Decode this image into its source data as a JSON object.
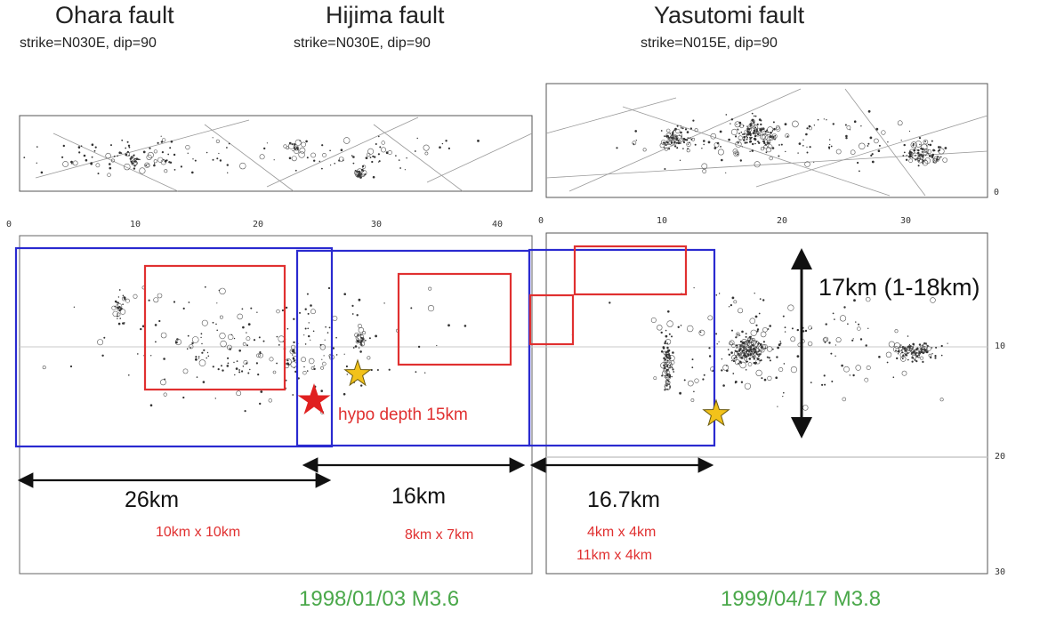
{
  "faults": [
    {
      "name": "Ohara fault",
      "params": "strike=N030E, dip=90"
    },
    {
      "name": "Hijima fault",
      "params": "strike=N030E, dip=90"
    },
    {
      "name": "Yasutomi fault",
      "params": "strike=N015E, dip=90"
    }
  ],
  "left_panel": {
    "x_ticks": [
      "0",
      "10",
      "20",
      "30",
      "40"
    ]
  },
  "right_panel": {
    "x_ticks": [
      "0",
      "10",
      "20",
      "30"
    ],
    "depth_ticks": [
      "10",
      "20",
      "30"
    ],
    "map_tick": "0"
  },
  "segments": [
    {
      "length": "26km",
      "asperity": "10km x 10km"
    },
    {
      "length": "16km",
      "asperity": "8km x 7km"
    },
    {
      "length": "16.7km",
      "asperity_1": "4km x 4km",
      "asperity_2": "11km x 4km"
    }
  ],
  "width_label": "17km (1-18km)",
  "hypocenter_label": "hypo depth 15km",
  "events": [
    "1998/01/03 M3.6",
    "1999/04/17 M3.8"
  ],
  "colors": {
    "fault_outline": "#2a2ad0",
    "asperity": "#e03030",
    "hypocenter": "#e02020",
    "star": "#f2c21a",
    "event_text": "#4aa84a"
  }
}
